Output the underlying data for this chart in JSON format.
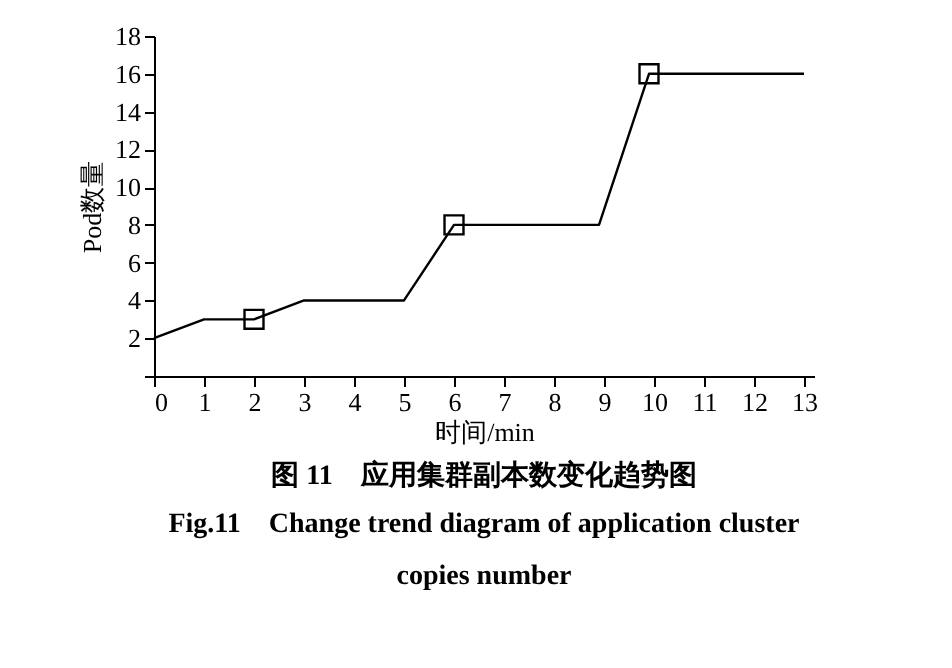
{
  "chart_data": {
    "type": "line",
    "title": "图 11　应用集群副本数变化趋势图",
    "annotations": [
      "Fig.11　Change trend diagram of application cluster copies number"
    ],
    "xlabel": "时间/min",
    "ylabel": "Pod数量",
    "series": [
      {
        "color": "#000000",
        "marker": "none",
        "line_style": "solid",
        "x": [
          0,
          1,
          2,
          3,
          5,
          6,
          8.9,
          9.9,
          13
        ],
        "values": [
          2,
          3,
          3,
          4,
          4,
          8,
          8,
          16,
          16
        ]
      },
      {
        "type": "scatter",
        "color": "#000000",
        "marker": "square",
        "x": [
          2,
          6,
          9.9
        ],
        "values": [
          3,
          8,
          16
        ]
      }
    ],
    "xlim": [
      0,
      13.2
    ],
    "xticks": [
      0,
      1,
      2,
      3,
      4,
      5,
      6,
      7,
      8,
      9,
      10,
      11,
      12,
      13
    ],
    "ylim": [
      0,
      18
    ],
    "yticks": [
      {
        "value": 0,
        "label": null
      },
      2,
      4,
      6,
      8,
      10,
      12,
      14,
      16,
      18
    ],
    "grid": false
  }
}
